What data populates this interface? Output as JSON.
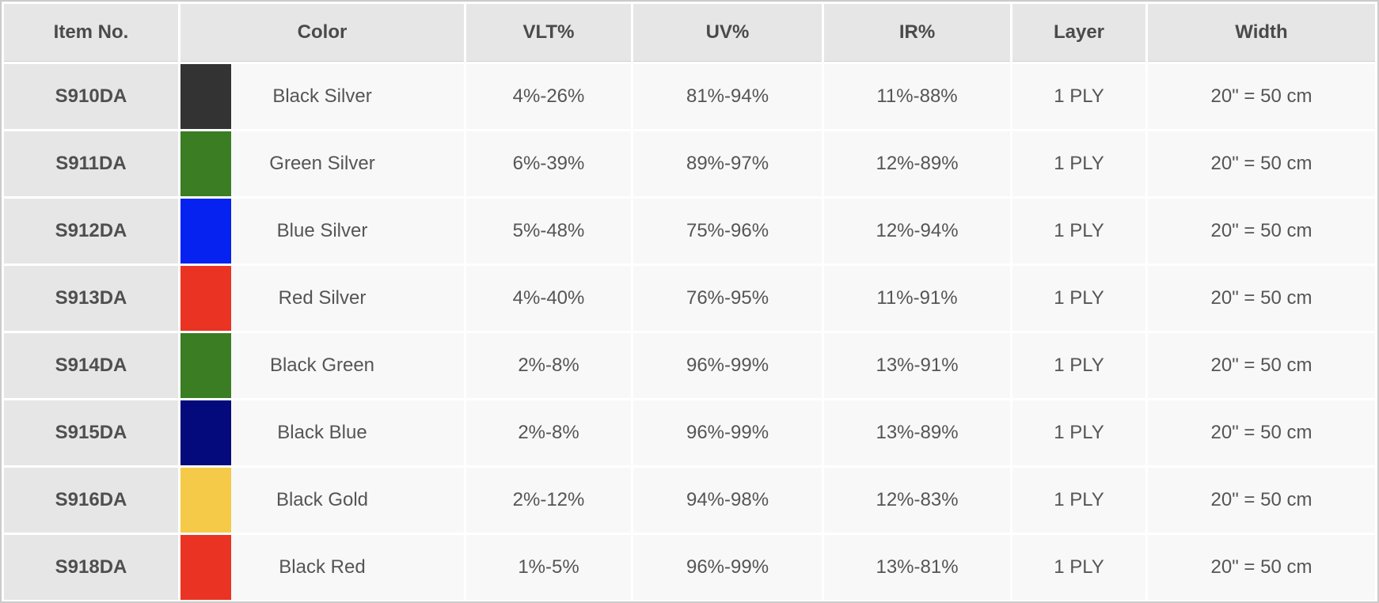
{
  "table": {
    "columns": [
      {
        "label": "Item No."
      },
      {
        "label": "Color"
      },
      {
        "label": "VLT%"
      },
      {
        "label": "UV%"
      },
      {
        "label": "IR%"
      },
      {
        "label": "Layer"
      },
      {
        "label": "Width"
      }
    ],
    "rows": [
      {
        "item_no": "S910DA",
        "swatch_color": "#333333",
        "color_name": "Black Silver",
        "vlt": "4%-26%",
        "uv": "81%-94%",
        "ir": "11%-88%",
        "layer": "1 PLY",
        "width": "20\" = 50 cm"
      },
      {
        "item_no": "S911DA",
        "swatch_color": "#3a7d22",
        "color_name": "Green Silver",
        "vlt": "6%-39%",
        "uv": "89%-97%",
        "ir": "12%-89%",
        "layer": "1 PLY",
        "width": "20\" = 50 cm"
      },
      {
        "item_no": "S912DA",
        "swatch_color": "#0522f0",
        "color_name": "Blue Silver",
        "vlt": "5%-48%",
        "uv": "75%-96%",
        "ir": "12%-94%",
        "layer": "1 PLY",
        "width": "20\" = 50 cm"
      },
      {
        "item_no": "S913DA",
        "swatch_color": "#ea3323",
        "color_name": "Red Silver",
        "vlt": "4%-40%",
        "uv": "76%-95%",
        "ir": "11%-91%",
        "layer": "1 PLY",
        "width": "20\" = 50 cm"
      },
      {
        "item_no": "S914DA",
        "swatch_color": "#3a7d22",
        "color_name": "Black Green",
        "vlt": "2%-8%",
        "uv": "96%-99%",
        "ir": "13%-91%",
        "layer": "1 PLY",
        "width": "20\" = 50 cm"
      },
      {
        "item_no": "S915DA",
        "swatch_color": "#040a7c",
        "color_name": "Black Blue",
        "vlt": "2%-8%",
        "uv": "96%-99%",
        "ir": "13%-89%",
        "layer": "1 PLY",
        "width": "20\" = 50 cm"
      },
      {
        "item_no": "S916DA",
        "swatch_color": "#f6ca49",
        "color_name": "Black Gold",
        "vlt": "2%-12%",
        "uv": "94%-98%",
        "ir": "12%-83%",
        "layer": "1 PLY",
        "width": "20\" = 50 cm"
      },
      {
        "item_no": "S918DA",
        "swatch_color": "#ea3323",
        "color_name": "Black Red",
        "vlt": "1%-5%",
        "uv": "96%-99%",
        "ir": "13%-81%",
        "layer": "1 PLY",
        "width": "20\" = 50 cm"
      }
    ]
  },
  "colors": {
    "header_bg": "#e6e6e6",
    "item_col_bg": "#e6e6e6",
    "data_cell_bg": "#f8f8f8",
    "text": "#555555",
    "outer_border": "#cbcbcb",
    "cell_gap": "#ffffff"
  },
  "chart_data": {
    "type": "table",
    "title": "",
    "columns": [
      "Item No.",
      "Color",
      "VLT%",
      "UV%",
      "IR%",
      "Layer",
      "Width"
    ],
    "rows": [
      [
        "S910DA",
        "Black Silver",
        "4%-26%",
        "81%-94%",
        "11%-88%",
        "1 PLY",
        "20\" = 50 cm"
      ],
      [
        "S911DA",
        "Green Silver",
        "6%-39%",
        "89%-97%",
        "12%-89%",
        "1 PLY",
        "20\" = 50 cm"
      ],
      [
        "S912DA",
        "Blue Silver",
        "5%-48%",
        "75%-96%",
        "12%-94%",
        "1 PLY",
        "20\" = 50 cm"
      ],
      [
        "S913DA",
        "Red Silver",
        "4%-40%",
        "76%-95%",
        "11%-91%",
        "1 PLY",
        "20\" = 50 cm"
      ],
      [
        "S914DA",
        "Black Green",
        "2%-8%",
        "96%-99%",
        "13%-91%",
        "1 PLY",
        "20\" = 50 cm"
      ],
      [
        "S915DA",
        "Black Blue",
        "2%-8%",
        "96%-99%",
        "13%-89%",
        "1 PLY",
        "20\" = 50 cm"
      ],
      [
        "S916DA",
        "Black Gold",
        "2%-12%",
        "94%-98%",
        "12%-83%",
        "1 PLY",
        "20\" = 50 cm"
      ],
      [
        "S918DA",
        "Black Red",
        "1%-5%",
        "96%-99%",
        "13%-81%",
        "1 PLY",
        "20\" = 50 cm"
      ]
    ],
    "swatch_colors": [
      "#333333",
      "#3a7d22",
      "#0522f0",
      "#ea3323",
      "#3a7d22",
      "#040a7c",
      "#f6ca49",
      "#ea3323"
    ]
  }
}
